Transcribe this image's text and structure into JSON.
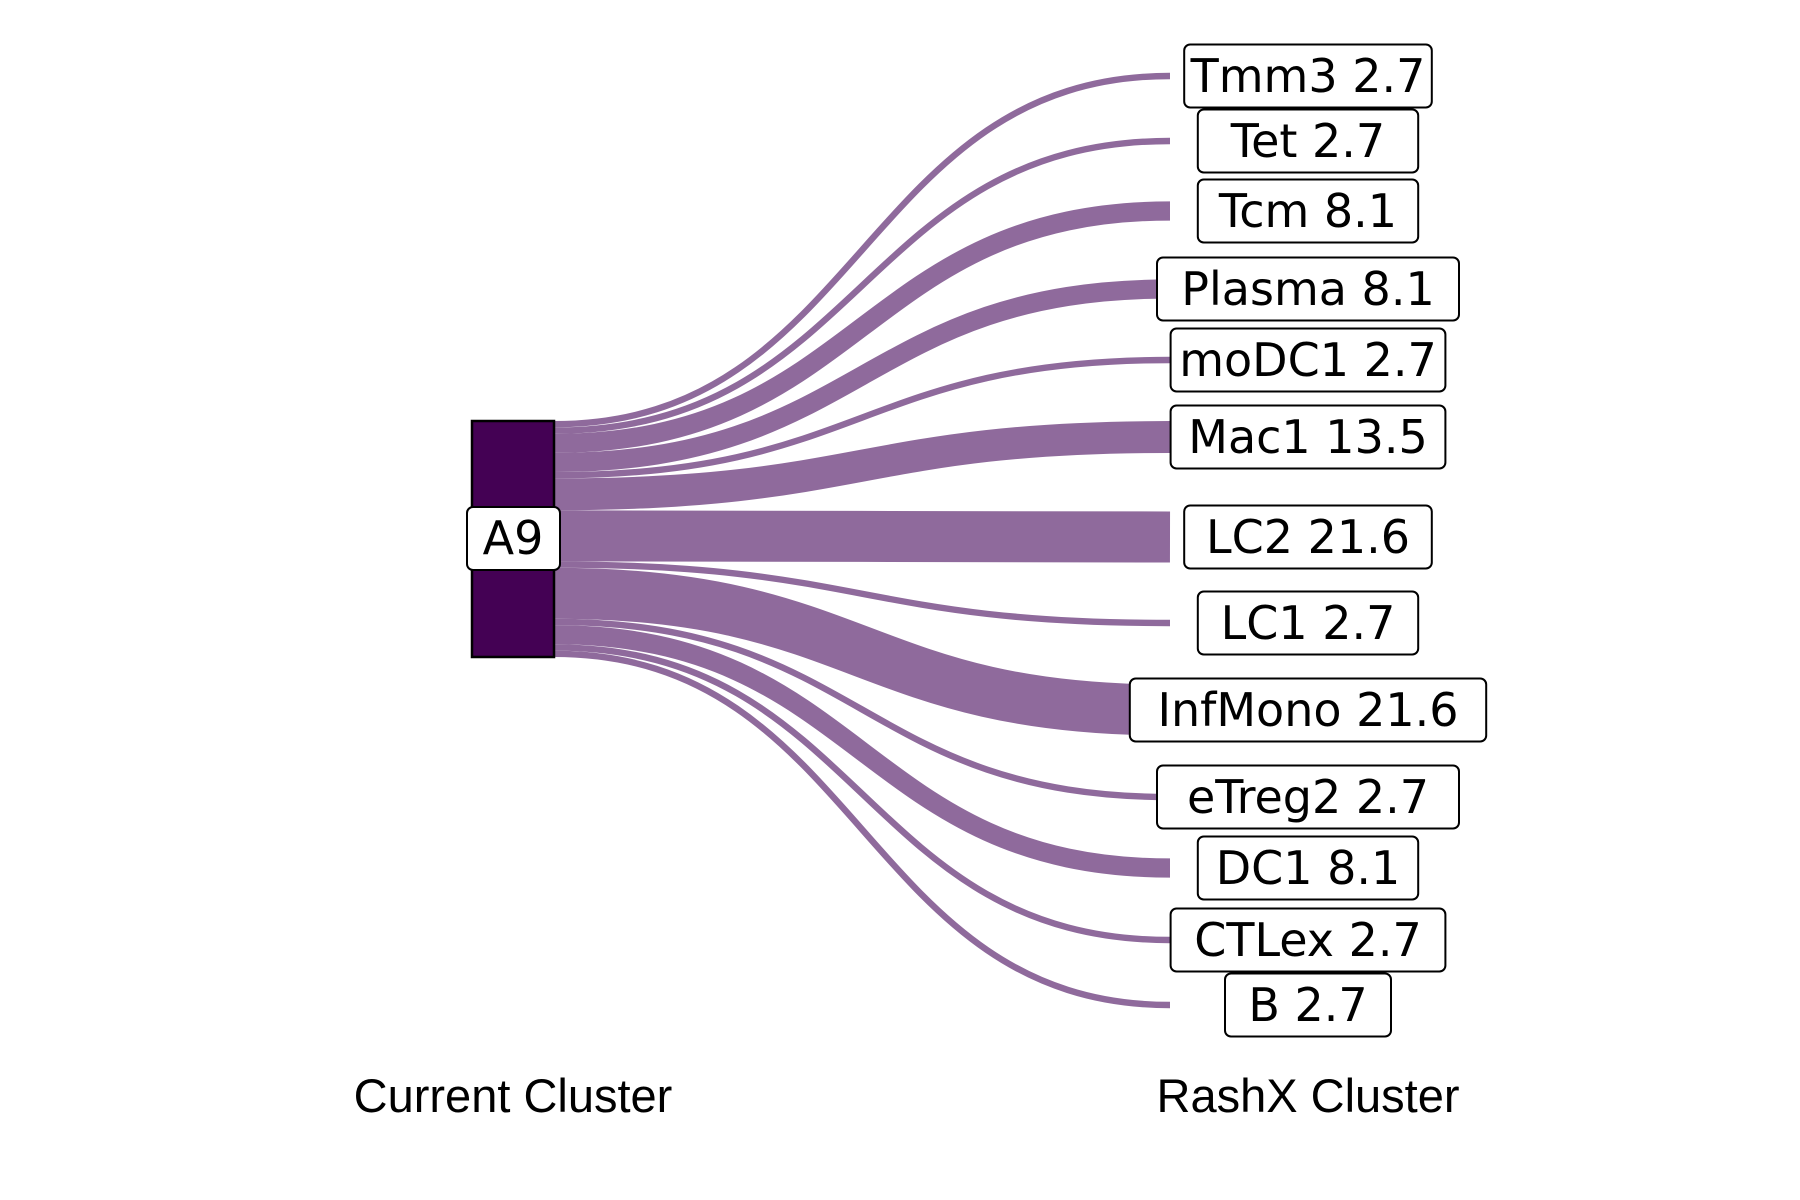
{
  "chart_data": {
    "type": "sankey",
    "source": {
      "name": "A9",
      "color": "#440154"
    },
    "link_color": "#8F6A9C",
    "targets": [
      {
        "name": "Tmm3",
        "value": 2.7,
        "label": "Tmm3 2.7"
      },
      {
        "name": "Tet",
        "value": 2.7,
        "label": "Tet 2.7"
      },
      {
        "name": "Tcm",
        "value": 8.1,
        "label": "Tcm 8.1"
      },
      {
        "name": "Plasma",
        "value": 8.1,
        "label": "Plasma 8.1"
      },
      {
        "name": "moDC1",
        "value": 2.7,
        "label": "moDC1 2.7"
      },
      {
        "name": "Mac1",
        "value": 13.5,
        "label": "Mac1 13.5"
      },
      {
        "name": "LC2",
        "value": 21.6,
        "label": "LC2 21.6"
      },
      {
        "name": "LC1",
        "value": 2.7,
        "label": "LC1 2.7"
      },
      {
        "name": "InfMono",
        "value": 21.6,
        "label": "InfMono 21.6"
      },
      {
        "name": "eTreg2",
        "value": 2.7,
        "label": "eTreg2 2.7"
      },
      {
        "name": "DC1",
        "value": 8.1,
        "label": "DC1 8.1"
      },
      {
        "name": "CTLex",
        "value": 2.7,
        "label": "CTLex 2.7"
      },
      {
        "name": "B",
        "value": 2.7,
        "label": "B 2.7"
      }
    ],
    "axis_labels": {
      "left": "Current Cluster",
      "right": "RashX Cluster"
    }
  }
}
